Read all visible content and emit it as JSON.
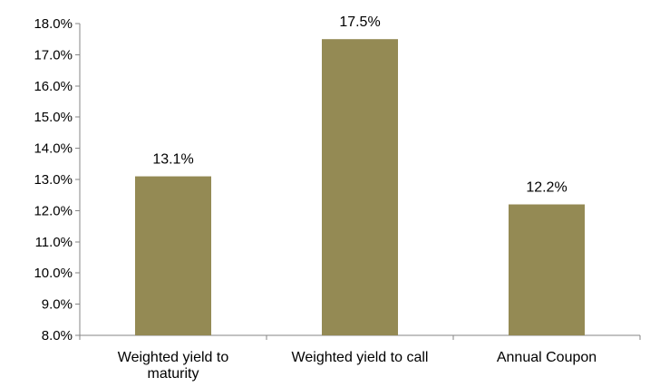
{
  "chart_data": {
    "type": "bar",
    "title": "",
    "xlabel": "",
    "ylabel": "",
    "categories": [
      [
        "Weighted yield to",
        "maturity"
      ],
      [
        "Weighted yield to call"
      ],
      [
        "Annual Coupon"
      ]
    ],
    "values": [
      13.1,
      17.5,
      12.2
    ],
    "data_labels": [
      "13.1%",
      "17.5%",
      "12.2%"
    ],
    "ylim": [
      8.0,
      18.0
    ],
    "yticks": [
      8.0,
      9.0,
      10.0,
      11.0,
      12.0,
      13.0,
      14.0,
      15.0,
      16.0,
      17.0,
      18.0
    ],
    "ytick_labels": [
      "8.0%",
      "9.0%",
      "10.0%",
      "11.0%",
      "12.0%",
      "13.0%",
      "14.0%",
      "15.0%",
      "16.0%",
      "17.0%",
      "18.0%"
    ],
    "grid": false,
    "bar_color": "#948A54"
  }
}
